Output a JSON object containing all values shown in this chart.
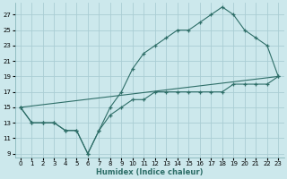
{
  "xlabel": "Humidex (Indice chaleur)",
  "background_color": "#cce8ec",
  "grid_color": "#aacdd4",
  "line_color": "#2e6e68",
  "xlim": [
    -0.5,
    23.5
  ],
  "ylim": [
    8.5,
    28.5
  ],
  "xticks": [
    0,
    1,
    2,
    3,
    4,
    5,
    6,
    7,
    8,
    9,
    10,
    11,
    12,
    13,
    14,
    15,
    16,
    17,
    18,
    19,
    20,
    21,
    22,
    23
  ],
  "yticks": [
    9,
    11,
    13,
    15,
    17,
    19,
    21,
    23,
    25,
    27
  ],
  "line1_x": [
    0,
    1,
    2,
    3,
    4,
    5,
    6,
    7,
    8,
    9,
    10,
    11,
    12,
    13,
    14,
    15,
    16,
    17,
    18,
    19,
    20,
    21,
    22,
    23
  ],
  "line1_y": [
    15,
    13,
    13,
    13,
    12,
    12,
    9,
    12,
    14,
    15,
    16,
    16,
    17,
    17,
    17,
    17,
    17,
    17,
    17,
    18,
    18,
    18,
    18,
    19
  ],
  "line2_x": [
    0,
    1,
    2,
    3,
    4,
    5,
    6,
    7,
    8,
    9,
    10,
    11,
    12,
    13,
    14,
    15,
    16,
    17,
    18,
    19,
    20,
    21,
    22,
    23
  ],
  "line2_y": [
    15,
    13,
    13,
    13,
    12,
    12,
    9,
    12,
    15,
    17,
    20,
    22,
    23,
    24,
    25,
    25,
    26,
    27,
    28,
    27,
    25,
    24,
    23,
    19
  ],
  "line3_x": [
    0,
    23
  ],
  "line3_y": [
    15,
    19
  ]
}
